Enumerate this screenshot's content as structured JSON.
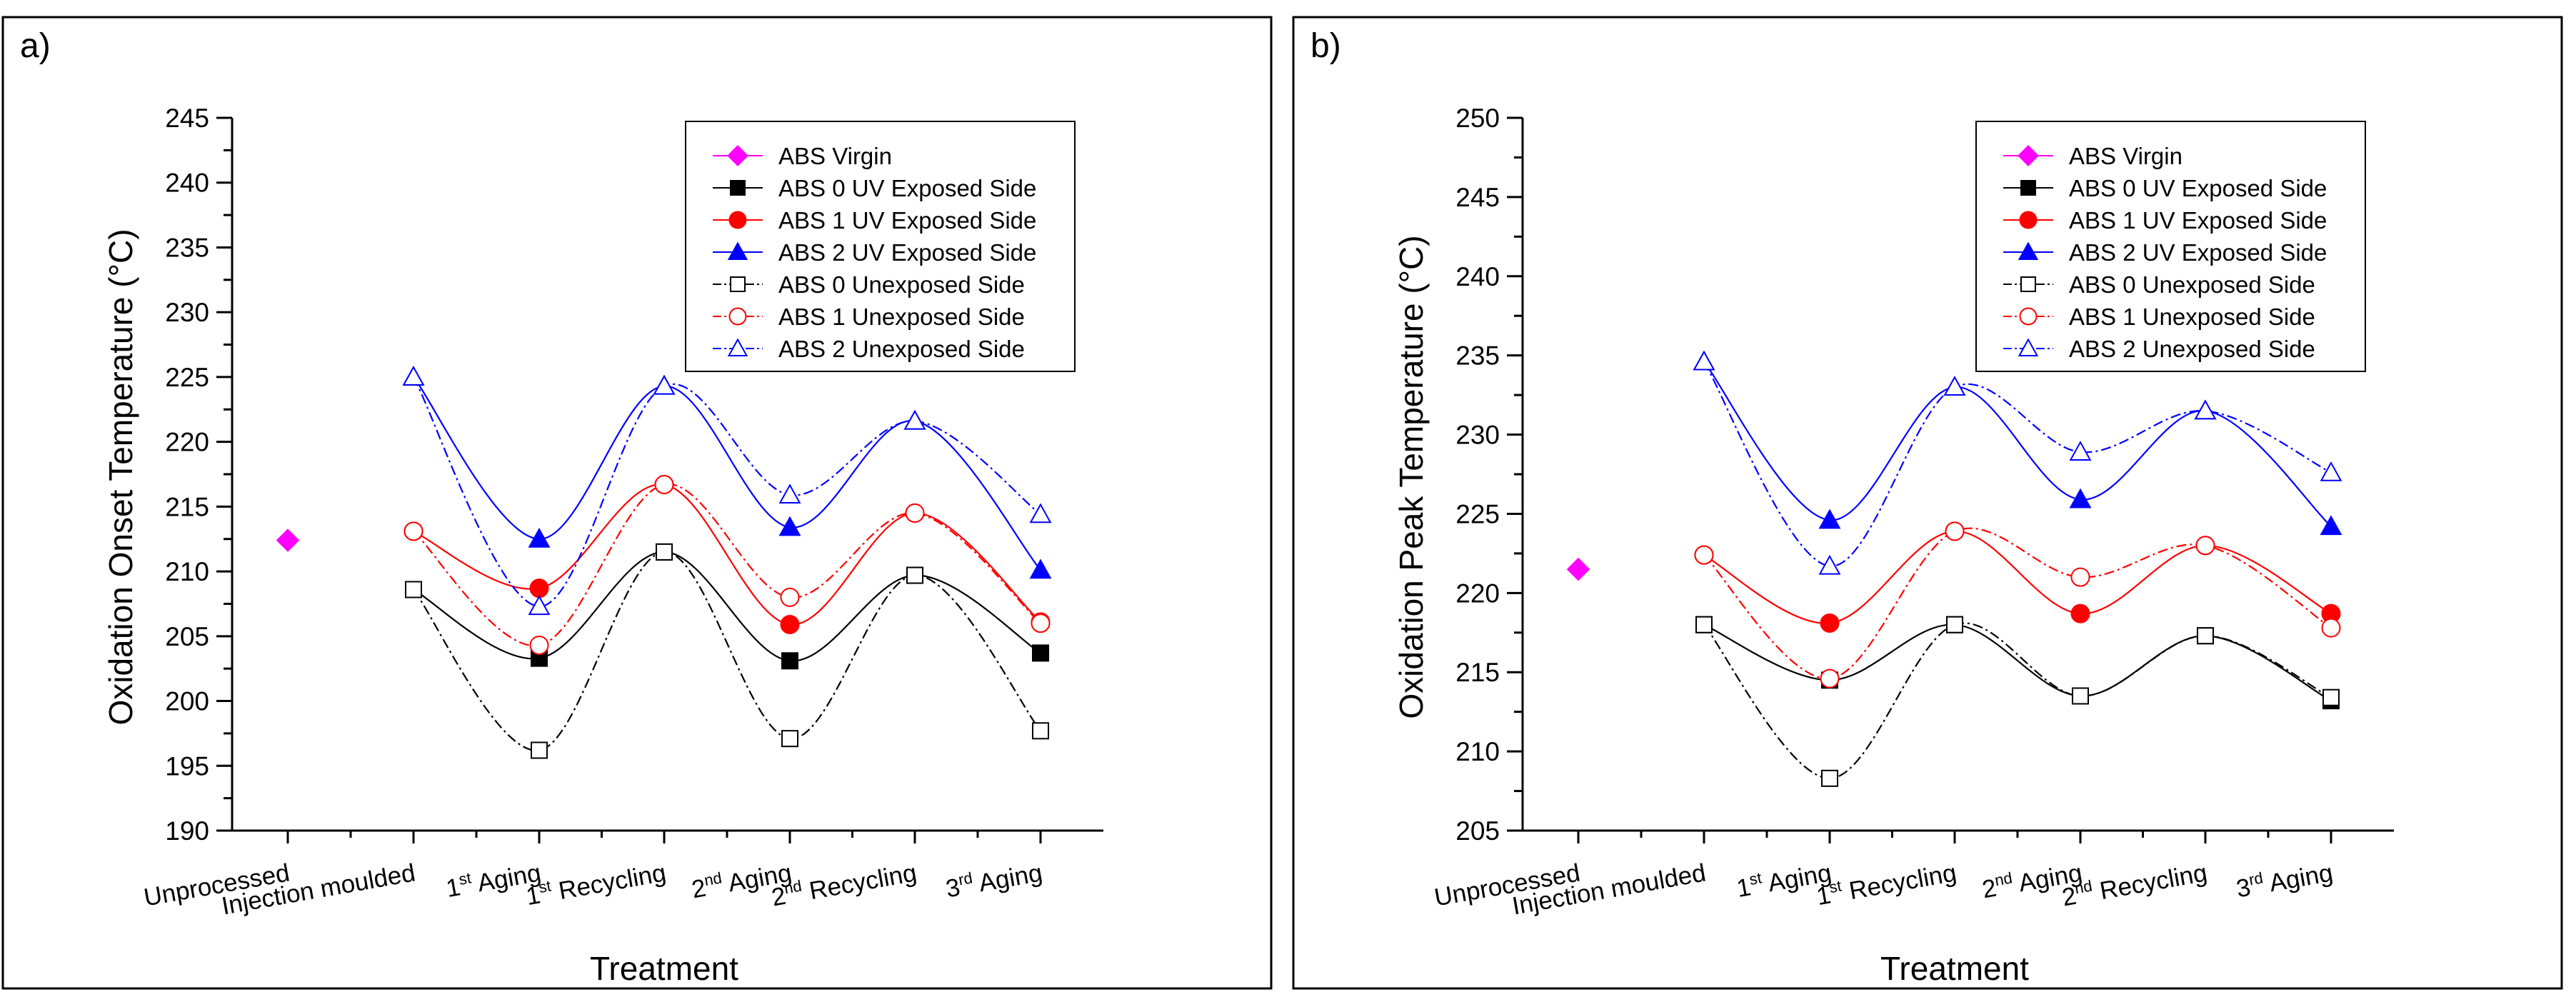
{
  "x_categories": [
    {
      "main": "Unprocessed",
      "sup": "",
      "suffix": ""
    },
    {
      "main": "Injection moulded",
      "sup": "",
      "suffix": ""
    },
    {
      "main": "1",
      "sup": "st",
      "suffix": " Aging"
    },
    {
      "main": "1",
      "sup": "st",
      "suffix": " Recycling"
    },
    {
      "main": "2",
      "sup": "nd",
      "suffix": " Aging"
    },
    {
      "main": "2",
      "sup": "nd",
      "suffix": " Recycling"
    },
    {
      "main": "3",
      "sup": "rd",
      "suffix": " Aging"
    }
  ],
  "legend": [
    "ABS Virgin",
    "ABS 0 UV Exposed Side",
    "ABS 1 UV Exposed Side",
    "ABS 2 UV Exposed Side",
    "ABS 0 Unexposed Side",
    "ABS 1 Unexposed Side",
    "ABS 2 Unexposed Side"
  ],
  "colors": {
    "virgin": "#ff00ff",
    "abs0": "#000000",
    "abs1": "#ff0000",
    "abs2": "#0000ff"
  },
  "chart_data": [
    {
      "type": "line",
      "panel_label": "a)",
      "xlabel": "Treatment",
      "ylabel": "Oxidation Onset Temperature (°C)",
      "ylim": [
        190,
        245
      ],
      "yticks": [
        190,
        195,
        200,
        205,
        210,
        215,
        220,
        225,
        230,
        235,
        240,
        245
      ],
      "series": [
        {
          "name": "ABS Virgin",
          "values": [
            212.4,
            null,
            null,
            null,
            null,
            null,
            null
          ]
        },
        {
          "name": "ABS 0 UV Exposed Side",
          "values": [
            null,
            208.6,
            203.3,
            211.5,
            203.1,
            209.7,
            203.7
          ]
        },
        {
          "name": "ABS 1 UV Exposed Side",
          "values": [
            null,
            213.1,
            208.7,
            216.7,
            205.9,
            214.5,
            206.1
          ]
        },
        {
          "name": "ABS 2 UV Exposed Side",
          "values": [
            null,
            225.0,
            212.5,
            224.3,
            213.4,
            221.6,
            210.1
          ]
        },
        {
          "name": "ABS 0 Unexposed Side",
          "values": [
            null,
            208.6,
            196.2,
            211.5,
            197.1,
            209.7,
            197.7
          ]
        },
        {
          "name": "ABS 1 Unexposed Side",
          "values": [
            null,
            213.1,
            204.3,
            216.7,
            208.0,
            214.5,
            206.0
          ]
        },
        {
          "name": "ABS 2 Unexposed Side",
          "values": [
            null,
            225.0,
            207.3,
            224.3,
            215.9,
            221.6,
            214.4
          ]
        }
      ]
    },
    {
      "type": "line",
      "panel_label": "b)",
      "xlabel": "Treatment",
      "ylabel": "Oxidation Peak Temperature (°C)",
      "ylim": [
        205,
        250
      ],
      "yticks": [
        205,
        210,
        215,
        220,
        225,
        230,
        235,
        240,
        245,
        250
      ],
      "series": [
        {
          "name": "ABS Virgin",
          "values": [
            221.5,
            null,
            null,
            null,
            null,
            null,
            null
          ]
        },
        {
          "name": "ABS 0 UV Exposed Side",
          "values": [
            null,
            218.0,
            214.5,
            218.0,
            213.5,
            217.3,
            213.2
          ]
        },
        {
          "name": "ABS 1 UV Exposed Side",
          "values": [
            null,
            222.4,
            218.1,
            223.9,
            218.7,
            223.0,
            218.7
          ]
        },
        {
          "name": "ABS 2 UV Exposed Side",
          "values": [
            null,
            234.6,
            224.6,
            233.0,
            225.9,
            231.5,
            224.2
          ]
        },
        {
          "name": "ABS 0 Unexposed Side",
          "values": [
            null,
            218.0,
            208.3,
            218.0,
            213.5,
            217.3,
            213.4
          ]
        },
        {
          "name": "ABS 1 Unexposed Side",
          "values": [
            null,
            222.4,
            214.6,
            223.9,
            221.0,
            223.0,
            217.8
          ]
        },
        {
          "name": "ABS 2 Unexposed Side",
          "values": [
            null,
            234.6,
            221.7,
            233.0,
            228.9,
            231.5,
            227.6
          ]
        }
      ]
    }
  ]
}
